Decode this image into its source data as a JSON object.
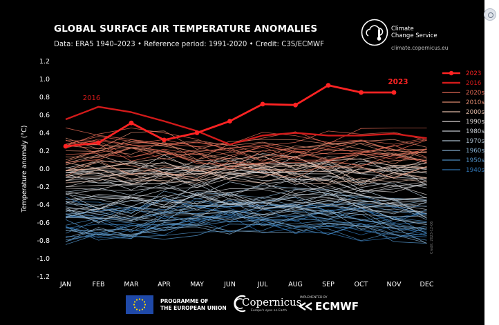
{
  "header": {
    "title": "GLOBAL SURFACE AIR TEMPERATURE ANOMALIES",
    "subtitle": "Data: ERA5 1940–2023 • Reference period: 1991-2020 • Credit: C3S/ECMWF"
  },
  "logo": {
    "name_line1": "Climate",
    "name_line2": "Change Service",
    "url": "climate.copernicus.eu",
    "icon": "thermometer-cloud-icon"
  },
  "footer": {
    "programme": "PROGRAMME OF",
    "union": "THE EUROPEAN UNION",
    "copernicus": "Copernicus",
    "copernicus_tagline": "Europe's eyes on Earth",
    "implemented_by": "IMPLEMENTED BY",
    "ecmwf": "ECMWF"
  },
  "side_credit": "Credit: 2023-12-06",
  "chart_data": {
    "type": "line",
    "title": "GLOBAL SURFACE AIR TEMPERATURE ANOMALIES",
    "ylabel": "Temperature anomaly (°C)",
    "xlabel": "",
    "categories": [
      "JAN",
      "FEB",
      "MAR",
      "APR",
      "MAY",
      "JUN",
      "JUL",
      "AUG",
      "SEP",
      "OCT",
      "NOV",
      "DEC"
    ],
    "ylim": [
      -1.2,
      1.2
    ],
    "yticks": [
      1.2,
      1.0,
      0.8,
      0.6,
      0.4,
      0.2,
      0.0,
      -0.2,
      -0.4,
      -0.6,
      -0.8,
      -1.0,
      -1.2
    ],
    "grid": false,
    "legend_position": "right",
    "series": [
      {
        "name": "2023",
        "values": [
          0.25,
          0.29,
          0.51,
          0.32,
          0.4,
          0.53,
          0.72,
          0.71,
          0.93,
          0.85,
          0.85,
          null
        ],
        "color": "#ff2323"
      },
      {
        "name": "2016",
        "values": [
          0.55,
          0.69,
          0.63,
          0.53,
          0.42,
          0.27,
          0.37,
          0.4,
          0.37,
          0.37,
          0.39,
          0.34
        ],
        "color": "#d21a1a"
      }
    ],
    "annotations": [
      {
        "text": "2016",
        "series": "2016",
        "month": "FEB"
      },
      {
        "text": "2023",
        "series": "2023",
        "month": "NOV"
      }
    ],
    "legend": [
      {
        "label": "2023",
        "color": "#ff2323"
      },
      {
        "label": "2016",
        "color": "#d21a1a"
      },
      {
        "label": "2020s",
        "color": "#e46a55"
      },
      {
        "label": "2010s",
        "color": "#e08b70"
      },
      {
        "label": "2000s",
        "color": "#dfb9a6"
      },
      {
        "label": "1990s",
        "color": "#d9d4d2"
      },
      {
        "label": "1980s",
        "color": "#c4c9cf"
      },
      {
        "label": "1970s",
        "color": "#a9bccb"
      },
      {
        "label": "1960s",
        "color": "#7fa8c8"
      },
      {
        "label": "1950s",
        "color": "#4e8cc0"
      },
      {
        "label": "1940s",
        "color": "#2f73b1"
      }
    ],
    "decades": [
      {
        "name": "1940s",
        "center": [
          -0.55,
          -0.6,
          -0.6,
          -0.55,
          -0.5,
          -0.5,
          -0.52,
          -0.54,
          -0.55,
          -0.55,
          -0.58,
          -0.62
        ]
      },
      {
        "name": "1950s",
        "center": [
          -0.65,
          -0.68,
          -0.68,
          -0.6,
          -0.57,
          -0.56,
          -0.55,
          -0.55,
          -0.58,
          -0.6,
          -0.64,
          -0.68
        ]
      },
      {
        "name": "1960s",
        "center": [
          -0.55,
          -0.57,
          -0.58,
          -0.52,
          -0.5,
          -0.48,
          -0.47,
          -0.46,
          -0.47,
          -0.5,
          -0.53,
          -0.58
        ]
      },
      {
        "name": "1970s",
        "center": [
          -0.45,
          -0.47,
          -0.45,
          -0.42,
          -0.38,
          -0.38,
          -0.38,
          -0.37,
          -0.38,
          -0.4,
          -0.43,
          -0.46
        ]
      },
      {
        "name": "1980s",
        "center": [
          -0.25,
          -0.3,
          -0.28,
          -0.25,
          -0.22,
          -0.22,
          -0.22,
          -0.22,
          -0.22,
          -0.25,
          -0.25,
          -0.28
        ]
      },
      {
        "name": "1990s",
        "center": [
          -0.1,
          -0.12,
          -0.1,
          -0.08,
          -0.07,
          -0.06,
          -0.05,
          -0.06,
          -0.08,
          -0.1,
          -0.12,
          -0.12
        ]
      },
      {
        "name": "2000s",
        "center": [
          0.05,
          0.03,
          0.05,
          0.05,
          0.05,
          0.06,
          0.05,
          0.06,
          0.05,
          0.04,
          0.04,
          0.03
        ]
      },
      {
        "name": "2010s",
        "center": [
          0.15,
          0.15,
          0.17,
          0.16,
          0.14,
          0.13,
          0.13,
          0.14,
          0.14,
          0.15,
          0.16,
          0.16
        ]
      },
      {
        "name": "2020s",
        "center": [
          0.3,
          0.3,
          0.3,
          0.27,
          0.24,
          0.24,
          0.25,
          0.25,
          0.26,
          0.28,
          0.29,
          0.3
        ]
      }
    ]
  }
}
